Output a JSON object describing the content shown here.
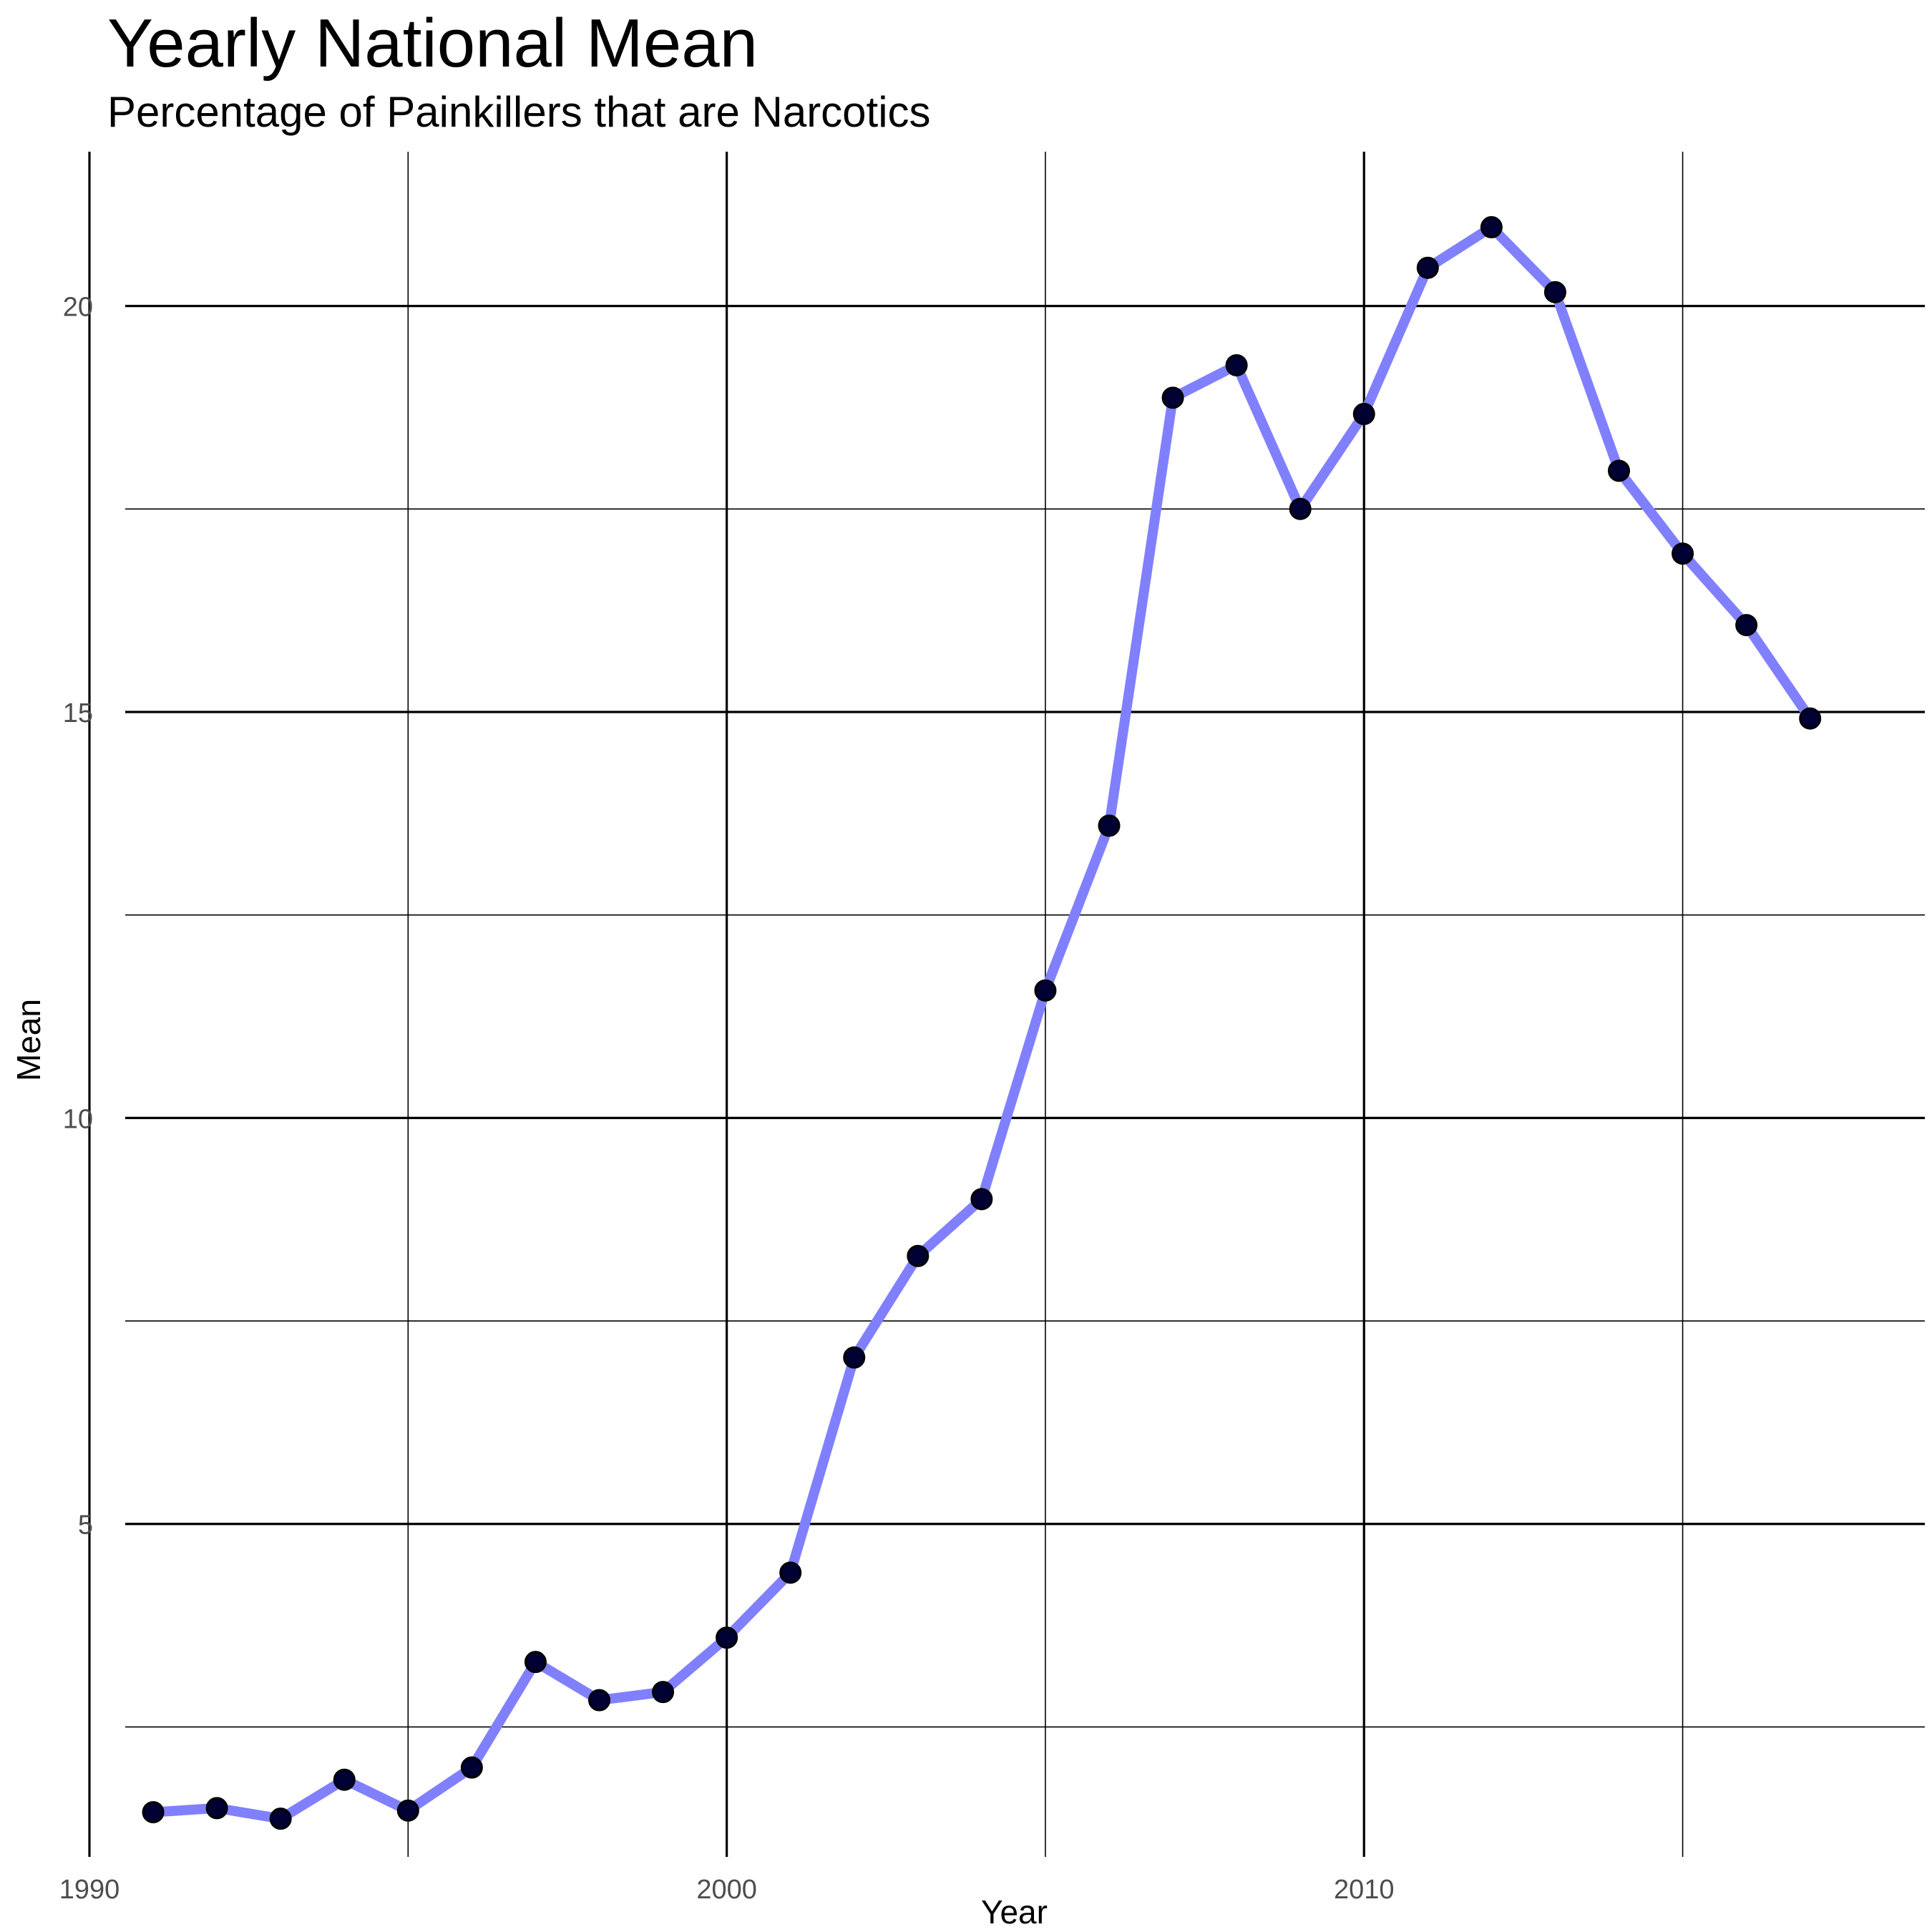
{
  "chart_data": {
    "type": "line",
    "title": "Yearly National Mean",
    "subtitle": "Percentage of Painkillers that are Narcotics",
    "xlabel": "Year",
    "ylabel": "Mean",
    "xlim": [
      1990,
      2018.8
    ],
    "ylim": [
      0.9,
      21.9
    ],
    "x_ticks": [
      1990,
      2000,
      2010
    ],
    "y_ticks": [
      5,
      10,
      15,
      20
    ],
    "grid": true,
    "legend": "none",
    "line_color": "#8080ff",
    "point_color": "#000033",
    "x": [
      1991,
      1992,
      1993,
      1994,
      1995,
      1996,
      1997,
      1998,
      1999,
      2000,
      2001,
      2002,
      2003,
      2004,
      2005,
      2006,
      2007,
      2008,
      2009,
      2010,
      2011,
      2012,
      2013,
      2014,
      2015,
      2016,
      2017
    ],
    "series": [
      {
        "values": [
          1.45,
          1.5,
          1.37,
          1.85,
          1.47,
          2.0,
          3.3,
          2.83,
          2.93,
          3.6,
          4.4,
          7.05,
          8.3,
          9.0,
          11.57,
          13.6,
          18.87,
          19.27,
          17.5,
          18.67,
          20.47,
          20.97,
          20.17,
          17.97,
          16.95,
          16.07,
          14.92
        ]
      }
    ]
  }
}
